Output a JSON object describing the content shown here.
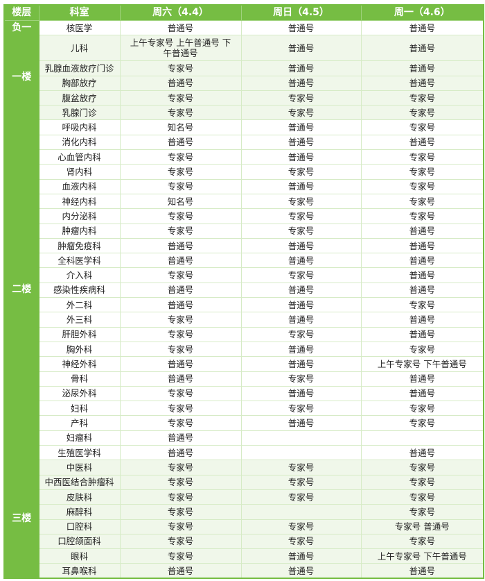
{
  "header": {
    "floor": "楼层",
    "department": "科室",
    "days": [
      "周六（4.4）",
      "周日（4.5）",
      "周一（4.6）"
    ]
  },
  "colors": {
    "accent": "#76bd43",
    "row_shade": "#f0f7ea",
    "grid": "#d6ebc6"
  },
  "floors": [
    {
      "name": "负一",
      "shaded": false,
      "rows": [
        {
          "dept": "核医学",
          "slots": [
            "普通号",
            "普通号",
            "普通号"
          ]
        }
      ]
    },
    {
      "name": "一楼",
      "shaded": true,
      "rows": [
        {
          "dept": "儿科",
          "slots": [
            "上午专家号 上午普通号 下午普通号",
            "普通号",
            "普通号"
          ]
        },
        {
          "dept": "乳腺血液放疗门诊",
          "slots": [
            "专家号",
            "普通号",
            "普通号"
          ]
        },
        {
          "dept": "胸部放疗",
          "slots": [
            "普通号",
            "普通号",
            "普通号"
          ]
        },
        {
          "dept": "腹盆放疗",
          "slots": [
            "专家号",
            "专家号",
            "专家号"
          ]
        },
        {
          "dept": "乳腺门诊",
          "slots": [
            "专家号",
            "专家号",
            "专家号"
          ]
        }
      ]
    },
    {
      "name": "二楼",
      "shaded": false,
      "rows": [
        {
          "dept": "呼吸内科",
          "slots": [
            "知名号",
            "普通号",
            "专家号"
          ]
        },
        {
          "dept": "消化内科",
          "slots": [
            "普通号",
            "普通号",
            "普通号"
          ]
        },
        {
          "dept": "心血管内科",
          "slots": [
            "专家号",
            "普通号",
            "专家号"
          ]
        },
        {
          "dept": "肾内科",
          "slots": [
            "专家号",
            "专家号",
            "专家号"
          ]
        },
        {
          "dept": "血液内科",
          "slots": [
            "专家号",
            "普通号",
            "专家号"
          ]
        },
        {
          "dept": "神经内科",
          "slots": [
            "知名号",
            "专家号",
            "专家号"
          ]
        },
        {
          "dept": "内分泌科",
          "slots": [
            "专家号",
            "专家号",
            "专家号"
          ]
        },
        {
          "dept": "肿瘤内科",
          "slots": [
            "专家号",
            "专家号",
            "普通号"
          ]
        },
        {
          "dept": "肿瘤免疫科",
          "slots": [
            "普通号",
            "普通号",
            "普通号"
          ]
        },
        {
          "dept": "全科医学科",
          "slots": [
            "普通号",
            "普通号",
            "普通号"
          ]
        },
        {
          "dept": "介入科",
          "slots": [
            "专家号",
            "专家号",
            "普通号"
          ]
        },
        {
          "dept": "感染性疾病科",
          "slots": [
            "普通号",
            "普通号",
            "普通号"
          ]
        },
        {
          "dept": "外二科",
          "slots": [
            "普通号",
            "普通号",
            "专家号"
          ]
        },
        {
          "dept": "外三科",
          "slots": [
            "专家号",
            "普通号",
            "普通号"
          ]
        },
        {
          "dept": "肝胆外科",
          "slots": [
            "专家号",
            "专家号",
            "普通号"
          ]
        },
        {
          "dept": "胸外科",
          "slots": [
            "专家号",
            "普通号",
            "专家号"
          ]
        },
        {
          "dept": "神经外科",
          "slots": [
            "普通号",
            "普通号",
            "上午专家号 下午普通号"
          ]
        },
        {
          "dept": "骨科",
          "slots": [
            "普通号",
            "专家号",
            "普通号"
          ]
        },
        {
          "dept": "泌尿外科",
          "slots": [
            "专家号",
            "普通号",
            "普通号"
          ]
        },
        {
          "dept": "妇科",
          "slots": [
            "专家号",
            "专家号",
            "专家号"
          ]
        },
        {
          "dept": "产科",
          "slots": [
            "专家号",
            "普通号",
            "专家号"
          ]
        },
        {
          "dept": "妇瘤科",
          "slots": [
            "普通号",
            "",
            ""
          ]
        },
        {
          "dept": "生殖医学科",
          "slots": [
            "普通号",
            "",
            "普通号"
          ]
        }
      ]
    },
    {
      "name": "三楼",
      "shaded": true,
      "rows": [
        {
          "dept": "中医科",
          "slots": [
            "专家号",
            "专家号",
            "专家号"
          ]
        },
        {
          "dept": "中西医结合肿瘤科",
          "slots": [
            "专家号",
            "专家号",
            "专家号"
          ]
        },
        {
          "dept": "皮肤科",
          "slots": [
            "专家号",
            "专家号",
            "专家号"
          ]
        },
        {
          "dept": "麻醉科",
          "slots": [
            "专家号",
            "",
            "专家号"
          ]
        },
        {
          "dept": "口腔科",
          "slots": [
            "专家号",
            "专家号",
            "专家号 普通号"
          ]
        },
        {
          "dept": "口腔颌面科",
          "slots": [
            "专家号",
            "专家号",
            "专家号"
          ]
        },
        {
          "dept": "眼科",
          "slots": [
            "专家号",
            "普通号",
            "上午专家号 下午普通号"
          ]
        },
        {
          "dept": "耳鼻喉科",
          "slots": [
            "普通号",
            "普通号",
            "普通号"
          ]
        }
      ]
    }
  ]
}
